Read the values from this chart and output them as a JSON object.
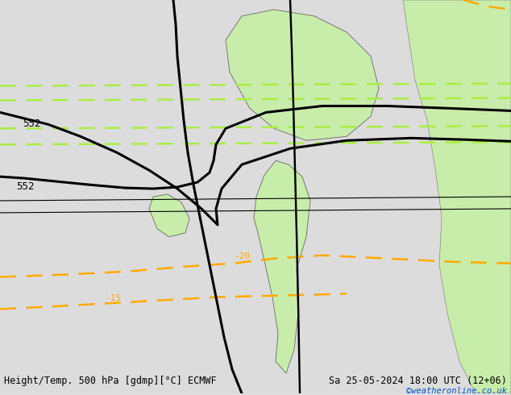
{
  "title_left": "Height/Temp. 500 hPa [gdmp][°C] ECMWF",
  "title_right": "Sa 25-05-2024 18:00 UTC (12+06)",
  "watermark": "©weatheronline.co.uk",
  "bg_ocean": "#dcdcdc",
  "bg_land_green": "#c8edaa",
  "bg_land_grey": "#dcdcdc",
  "coastline_color": "#888888",
  "border_color": "#888888",
  "geopotential_color": "#000000",
  "temp_color_green": "#aaee44",
  "temp_color_orange": "#ffaa00",
  "figsize": [
    6.34,
    4.9
  ],
  "dpi": 100,
  "extent": [
    -25,
    20,
    43,
    65
  ],
  "geo_contour_lw": 2.2,
  "temp_contour_lw": 1.8
}
